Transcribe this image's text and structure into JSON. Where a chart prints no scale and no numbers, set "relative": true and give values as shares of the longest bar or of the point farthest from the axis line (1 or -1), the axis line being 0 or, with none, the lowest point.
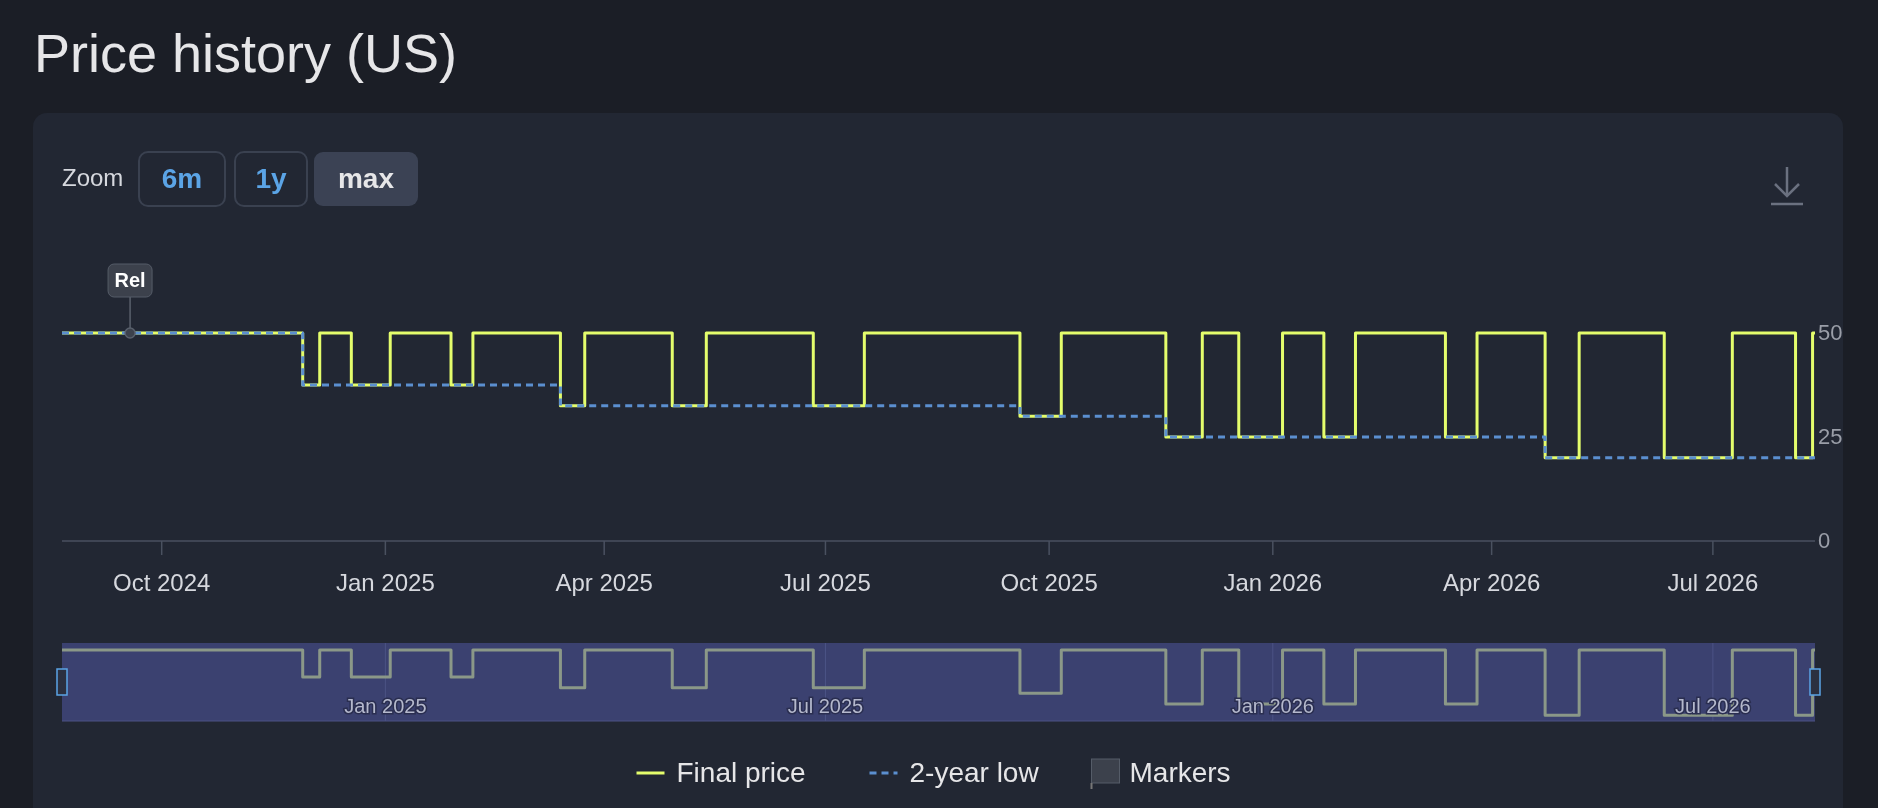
{
  "chart_data": [
    {
      "type": "step",
      "title": "Price history (US)",
      "annotations": [
        "Zoom",
        "6m",
        "1y",
        "max"
      ],
      "xlim": [
        "2024-08-21",
        "2026-08-12"
      ],
      "xticks": [
        {
          "value": "2024-10-01",
          "label": "Oct 2024"
        },
        {
          "value": "2025-01-01",
          "label": "Jan 2025"
        },
        {
          "value": "2025-04-01",
          "label": "Apr 2025"
        },
        {
          "value": "2025-07-01",
          "label": "Jul 2025"
        },
        {
          "value": "2025-10-01",
          "label": "Oct 2025"
        },
        {
          "value": "2026-01-01",
          "label": "Jan 2026"
        },
        {
          "value": "2026-04-01",
          "label": "Apr 2026"
        },
        {
          "value": "2026-07-01",
          "label": "Jul 2026"
        }
      ],
      "ylim": [
        0,
        50
      ],
      "yticks": [
        0,
        25,
        50
      ],
      "grid": false,
      "legend": "bottom",
      "series": [
        {
          "name": "Final price",
          "type": "step",
          "color": "#e4fd6c",
          "line_style": "solid",
          "x": [
            "2024-08-21",
            "2024-11-28",
            "2024-12-05",
            "2024-12-18",
            "2025-01-03",
            "2025-01-28",
            "2025-02-06",
            "2025-03-14",
            "2025-03-24",
            "2025-04-29",
            "2025-05-13",
            "2025-06-26",
            "2025-07-17",
            "2025-09-19",
            "2025-10-06",
            "2025-11-18",
            "2025-12-03",
            "2025-12-18",
            "2026-01-05",
            "2026-01-22",
            "2026-02-04",
            "2026-03-13",
            "2026-03-26",
            "2026-04-23",
            "2026-05-07",
            "2026-06-11",
            "2026-07-09",
            "2026-08-04",
            "2026-08-11",
            "2026-08-12"
          ],
          "values": [
            50,
            37.5,
            50,
            37.5,
            50,
            37.5,
            50,
            32.5,
            50,
            32.5,
            50,
            32.5,
            50,
            30,
            50,
            25,
            50,
            25,
            50,
            25,
            50,
            25,
            50,
            20,
            50,
            20,
            50,
            20,
            50,
            50
          ]
        },
        {
          "name": "2-year low",
          "type": "step",
          "color": "#5b8fd0",
          "line_style": "dashed",
          "x": [
            "2024-08-21",
            "2024-11-28",
            "2025-03-14",
            "2025-09-19",
            "2025-11-18",
            "2026-04-23",
            "2026-08-12"
          ],
          "values": [
            50,
            37.5,
            32.5,
            30,
            25,
            20,
            20
          ]
        },
        {
          "name": "Markers",
          "type": "scatter",
          "color": "#3c414c",
          "x": [
            "2024-09-18"
          ],
          "values": [
            50
          ],
          "value_labels": [
            "Rel"
          ]
        }
      ]
    },
    {
      "type": "step",
      "relative": true,
      "grid": "x",
      "xlim": [
        "2024-08-21",
        "2026-08-12"
      ],
      "xticks": [
        {
          "value": "2025-01-01",
          "label": "Jan 2025"
        },
        {
          "value": "2025-07-01",
          "label": "Jul 2025"
        },
        {
          "value": "2026-01-01",
          "label": "Jan 2026"
        },
        {
          "value": "2026-07-01",
          "label": "Jul 2026"
        }
      ],
      "series": [
        {
          "color": "#8b9888",
          "x": [
            "2024-08-21",
            "2024-11-28",
            "2024-12-05",
            "2024-12-18",
            "2025-01-03",
            "2025-01-28",
            "2025-02-06",
            "2025-03-14",
            "2025-03-24",
            "2025-04-29",
            "2025-05-13",
            "2025-06-26",
            "2025-07-17",
            "2025-09-19",
            "2025-10-06",
            "2025-11-18",
            "2025-12-03",
            "2025-12-18",
            "2026-01-05",
            "2026-01-22",
            "2026-02-04",
            "2026-03-13",
            "2026-03-26",
            "2026-04-23",
            "2026-05-07",
            "2026-06-11",
            "2026-07-09",
            "2026-08-04",
            "2026-08-11",
            "2026-08-12"
          ],
          "values": [
            1,
            0.62,
            1,
            0.62,
            1,
            0.62,
            1,
            0.47,
            1,
            0.47,
            1,
            0.47,
            1,
            0.39,
            1,
            0.24,
            1,
            0.24,
            1,
            0.24,
            1,
            0.24,
            1,
            0.08,
            1,
            0.08,
            1,
            0.08,
            1,
            1
          ]
        }
      ]
    }
  ]
}
